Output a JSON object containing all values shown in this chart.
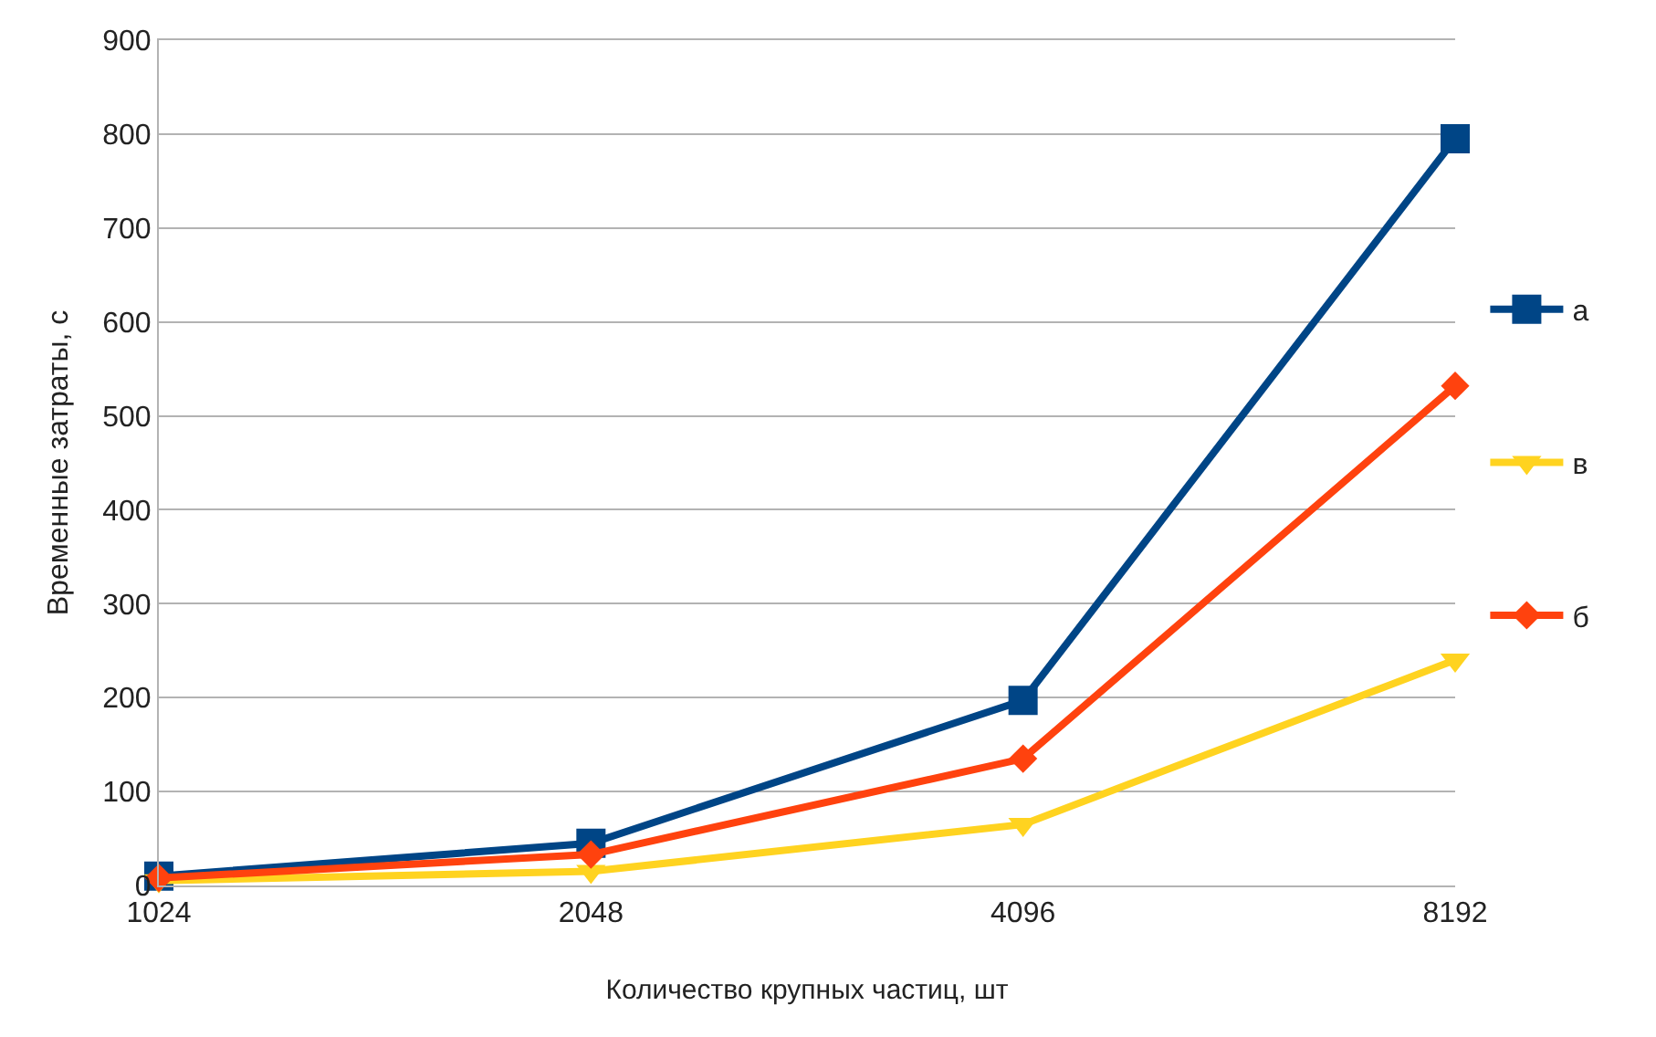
{
  "chart_data": {
    "type": "line",
    "xlabel": "Количество крупных частиц, шт",
    "ylabel": "Временные затраты, с",
    "categories": [
      "1024",
      "2048",
      "4096",
      "8192"
    ],
    "series": [
      {
        "name": "а",
        "color": "#004586",
        "marker": "square",
        "values": [
          10,
          45,
          197,
          795
        ]
      },
      {
        "name": "в",
        "color": "#ffd320",
        "marker": "triangle",
        "values": [
          5,
          15,
          65,
          240
        ]
      },
      {
        "name": "б",
        "color": "#ff420e",
        "marker": "diamond",
        "values": [
          8,
          33,
          135,
          532
        ]
      }
    ],
    "ylim": [
      0,
      900
    ],
    "yticks": [
      0,
      100,
      200,
      300,
      400,
      500,
      600,
      700,
      800,
      900
    ],
    "grid": "y",
    "legend": "right"
  }
}
